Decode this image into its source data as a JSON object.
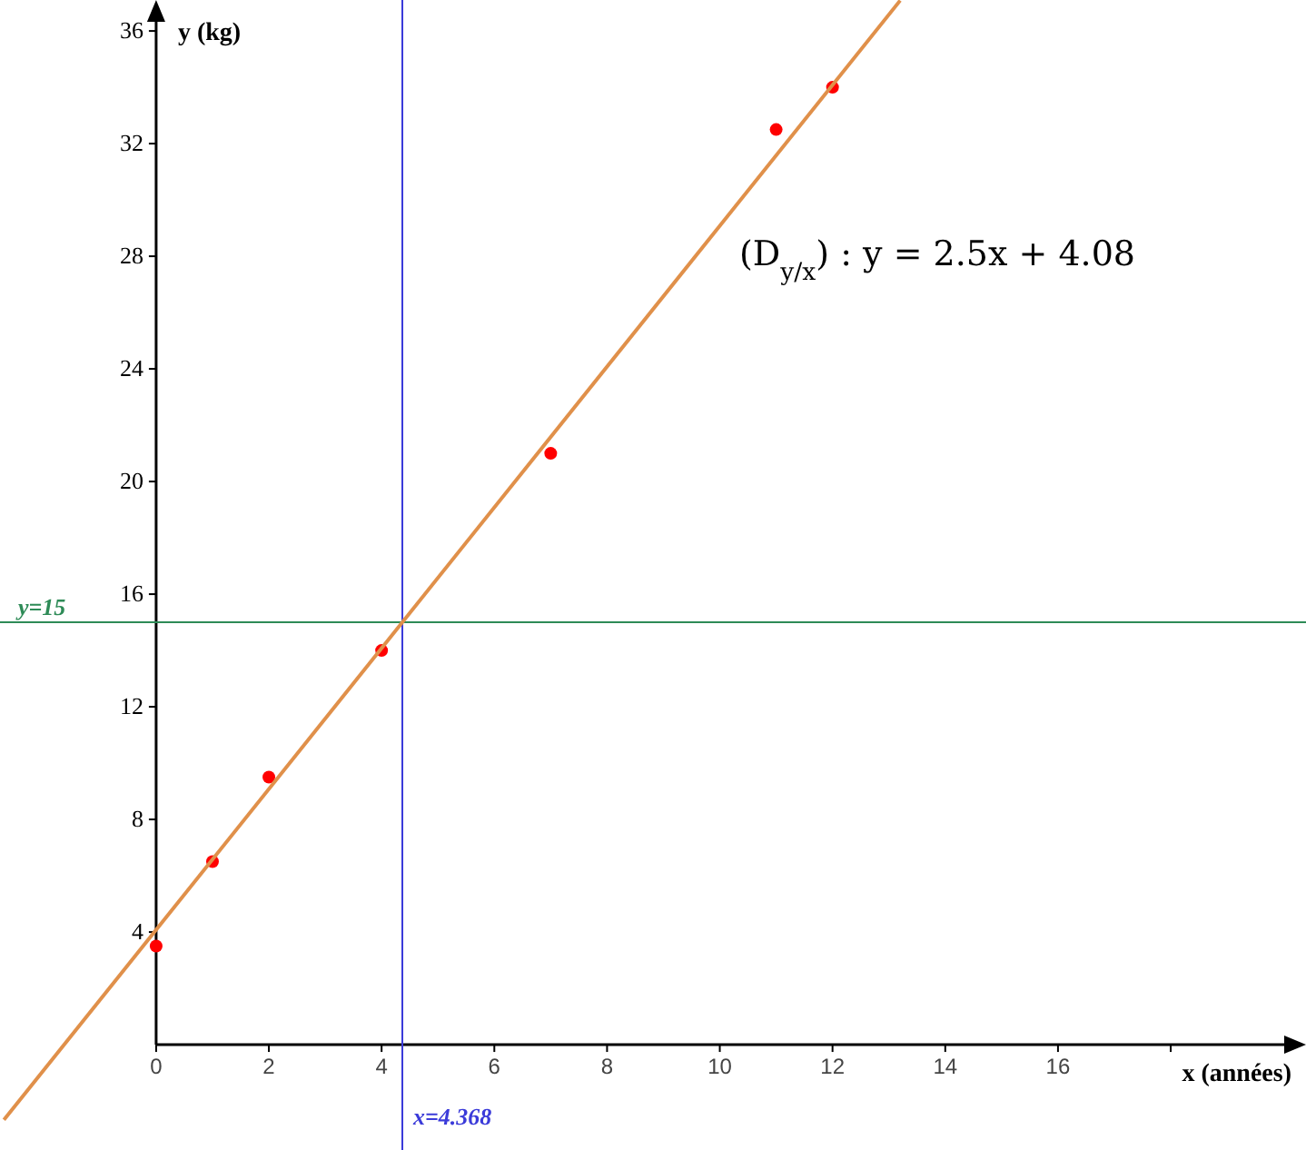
{
  "chart_data": {
    "type": "scatter",
    "xlabel": "x (années)",
    "ylabel": "y (kg)",
    "xlim": [
      -2.77,
      20.4
    ],
    "ylim": [
      -3.74,
      37.1
    ],
    "xticks": [
      0,
      2,
      4,
      6,
      8,
      10,
      12,
      14,
      16,
      {
        "value": 18,
        "label": null
      }
    ],
    "yticks": [
      4,
      8,
      12,
      16,
      20,
      24,
      28,
      32,
      36
    ],
    "grid": false,
    "marker": "circle",
    "series": [
      {
        "color": "#ff0000",
        "x": [
          0,
          1,
          2,
          4,
          7,
          11,
          12
        ],
        "values": [
          3.5,
          6.5,
          9.5,
          14,
          21,
          32.5,
          34
        ]
      },
      {
        "type": "line",
        "color": "#e0904a",
        "marker": "none",
        "line_style": "solid",
        "x": [
          -2.7,
          13.2
        ],
        "values": [
          -2.67,
          37.08
        ]
      }
    ],
    "ref_lines": [
      {
        "axis": "x",
        "value": 4.368,
        "label": "x=4.368",
        "color": "#3b3bd9"
      },
      {
        "axis": "y",
        "value": 15,
        "label": "y=15",
        "color": "#2e8b57"
      }
    ],
    "annotations": [
      "(D$_{y/x}$)  :  y = 2.5x + 4.08"
    ]
  }
}
